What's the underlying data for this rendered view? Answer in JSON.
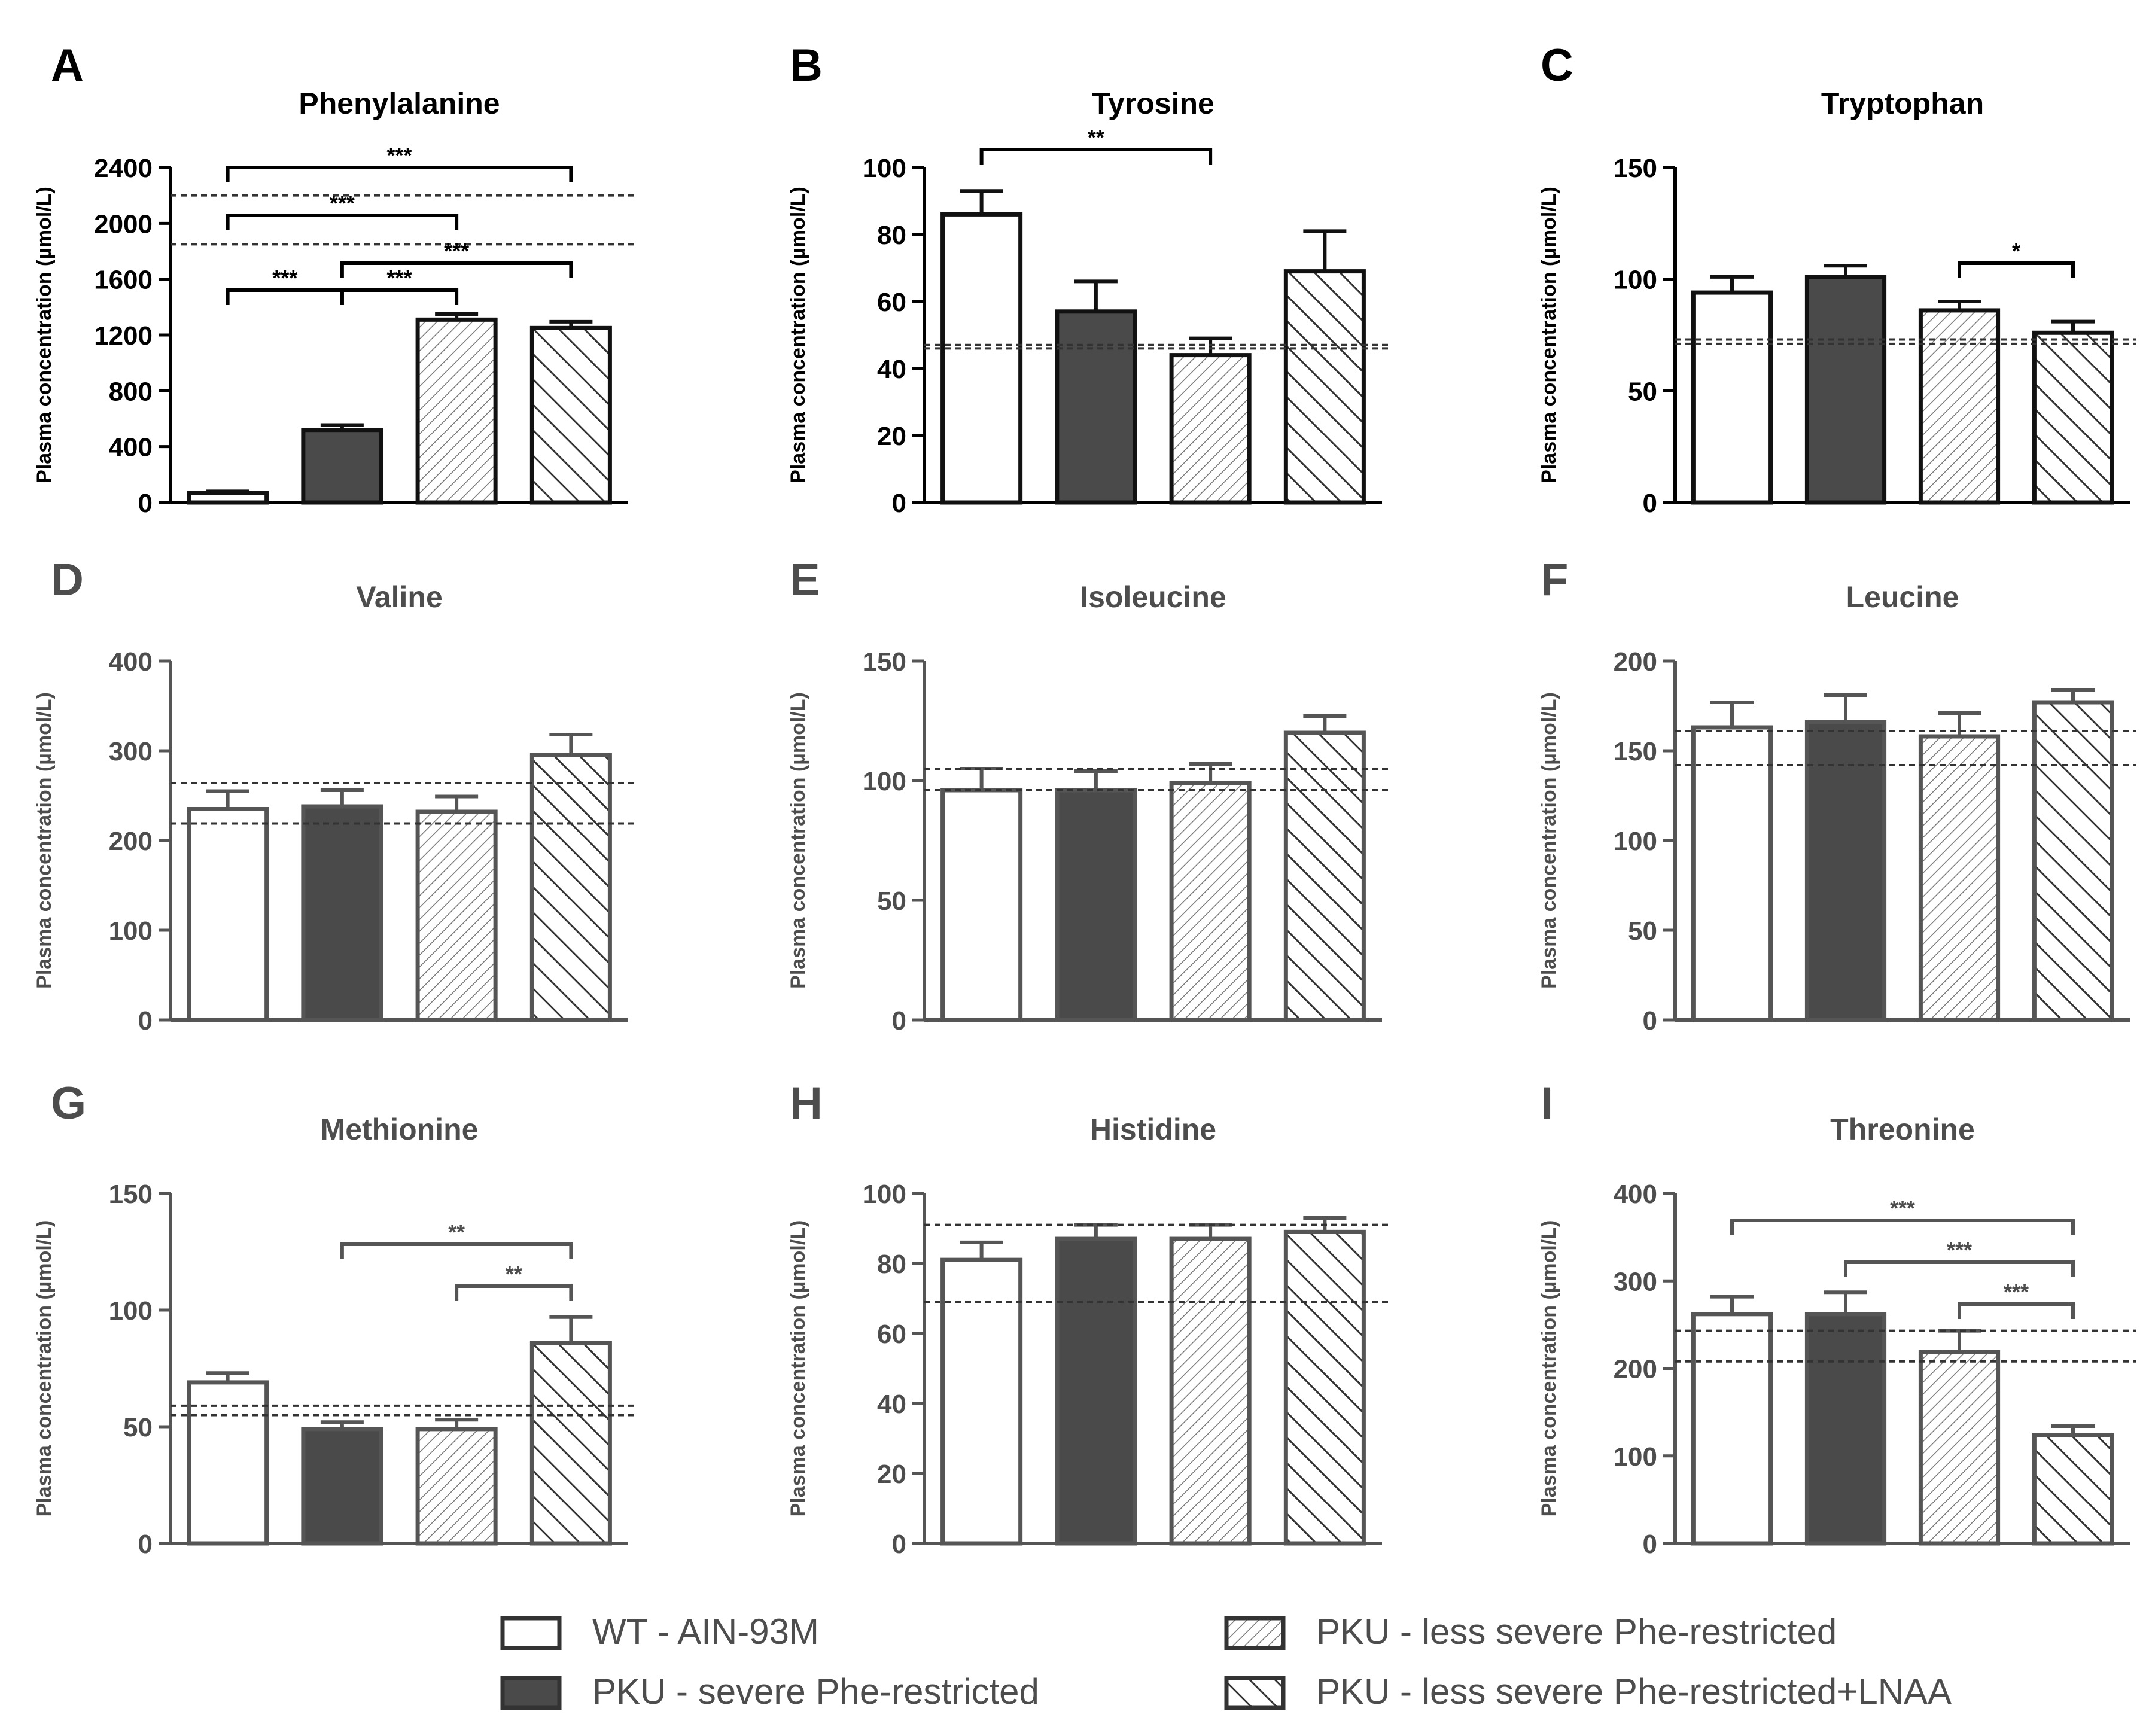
{
  "legend": [
    {
      "label": "WT - AIN-93M",
      "pattern": "white"
    },
    {
      "label": "PKU - severe Phe-restricted",
      "pattern": "solid"
    },
    {
      "label": "PKU - less severe Phe-restricted",
      "pattern": "fwd"
    },
    {
      "label": "PKU - less severe Phe-restricted+LNAA",
      "pattern": "back"
    }
  ],
  "colors": {
    "dark_fill": "#4a4a4a",
    "black_fill": "#000000",
    "axis_gray": "#555555",
    "text_gray": "#4d4d4d"
  },
  "chart_data": [
    {
      "panel": "A",
      "type": "bar",
      "title": "Phenylalanine",
      "ylabel": "Plasma concentration (µmol/L)",
      "ylim": [
        0,
        2400
      ],
      "yticks": [
        0,
        400,
        800,
        1200,
        1600,
        2000,
        2400
      ],
      "values": [
        70,
        520,
        1310,
        1250
      ],
      "errors": [
        10,
        35,
        40,
        45
      ],
      "reference_lines": [
        1850,
        2200
      ],
      "significance": [
        {
          "from": 0,
          "to": 1,
          "label": "***"
        },
        {
          "from": 1,
          "to": 2,
          "label": "***"
        },
        {
          "from": 0,
          "to": 2,
          "label": "***"
        },
        {
          "from": 1,
          "to": 3,
          "label": "***"
        },
        {
          "from": 0,
          "to": 3,
          "label": "***"
        }
      ]
    },
    {
      "panel": "B",
      "type": "bar",
      "title": "Tyrosine",
      "ylabel": "Plasma concentration (µmol/L)",
      "ylim": [
        0,
        100
      ],
      "yticks": [
        0,
        20,
        40,
        60,
        80,
        100
      ],
      "values": [
        86,
        57,
        44,
        69
      ],
      "errors": [
        7,
        9,
        5,
        12
      ],
      "reference_lines": [
        46,
        47
      ],
      "significance": [
        {
          "from": 0,
          "to": 2,
          "label": "**"
        }
      ]
    },
    {
      "panel": "C",
      "type": "bar",
      "title": "Tryptophan",
      "ylabel": "Plasma concentration (µmol/L)",
      "ylim": [
        0,
        150
      ],
      "yticks": [
        0,
        50,
        100,
        150
      ],
      "values": [
        94,
        101,
        86,
        76
      ],
      "errors": [
        7,
        5,
        4,
        5
      ],
      "reference_lines": [
        71,
        73
      ],
      "significance": [
        {
          "from": 2,
          "to": 3,
          "label": "*"
        }
      ]
    },
    {
      "panel": "D",
      "type": "bar",
      "title": "Valine",
      "ylabel": "Plasma concentration (µmol/L)",
      "ylim": [
        0,
        400
      ],
      "yticks": [
        0,
        100,
        200,
        300,
        400
      ],
      "values": [
        235,
        238,
        232,
        295
      ],
      "errors": [
        20,
        18,
        17,
        23
      ],
      "reference_lines": [
        219,
        264
      ],
      "significance": []
    },
    {
      "panel": "E",
      "type": "bar",
      "title": "Isoleucine",
      "ylabel": "Plasma concentration (µmol/L)",
      "ylim": [
        0,
        150
      ],
      "yticks": [
        0,
        50,
        100,
        150
      ],
      "values": [
        96,
        96,
        99,
        120
      ],
      "errors": [
        9,
        8,
        8,
        7
      ],
      "reference_lines": [
        96,
        105
      ],
      "significance": []
    },
    {
      "panel": "F",
      "type": "bar",
      "title": "Leucine",
      "ylabel": "Plasma concentration (µmol/L)",
      "ylim": [
        0,
        200
      ],
      "yticks": [
        0,
        50,
        100,
        150,
        200
      ],
      "values": [
        163,
        166,
        158,
        177
      ],
      "errors": [
        14,
        15,
        13,
        7
      ],
      "reference_lines": [
        142,
        161
      ],
      "significance": []
    },
    {
      "panel": "G",
      "type": "bar",
      "title": "Methionine",
      "ylabel": "Plasma concentration (µmol/L)",
      "ylim": [
        0,
        150
      ],
      "yticks": [
        0,
        50,
        100,
        150
      ],
      "values": [
        69,
        49,
        49,
        86
      ],
      "errors": [
        4,
        3,
        4,
        11
      ],
      "reference_lines": [
        55,
        59
      ],
      "significance": [
        {
          "from": 2,
          "to": 3,
          "label": "**"
        },
        {
          "from": 1,
          "to": 3,
          "label": "**"
        }
      ]
    },
    {
      "panel": "H",
      "type": "bar",
      "title": "Histidine",
      "ylabel": "Plasma concentration (µmol/L)",
      "ylim": [
        0,
        100
      ],
      "yticks": [
        0,
        20,
        40,
        60,
        80,
        100
      ],
      "values": [
        81,
        87,
        87,
        89
      ],
      "errors": [
        5,
        4,
        4,
        4
      ],
      "reference_lines": [
        69,
        91
      ],
      "significance": []
    },
    {
      "panel": "I",
      "type": "bar",
      "title": "Threonine",
      "ylabel": "Plasma concentration (µmol/L)",
      "ylim": [
        0,
        400
      ],
      "yticks": [
        0,
        100,
        200,
        300,
        400
      ],
      "values": [
        262,
        262,
        219,
        124
      ],
      "errors": [
        20,
        25,
        24,
        10
      ],
      "reference_lines": [
        208,
        243
      ],
      "significance": [
        {
          "from": 2,
          "to": 3,
          "label": "***"
        },
        {
          "from": 1,
          "to": 3,
          "label": "***"
        },
        {
          "from": 0,
          "to": 3,
          "label": "***"
        }
      ]
    }
  ]
}
